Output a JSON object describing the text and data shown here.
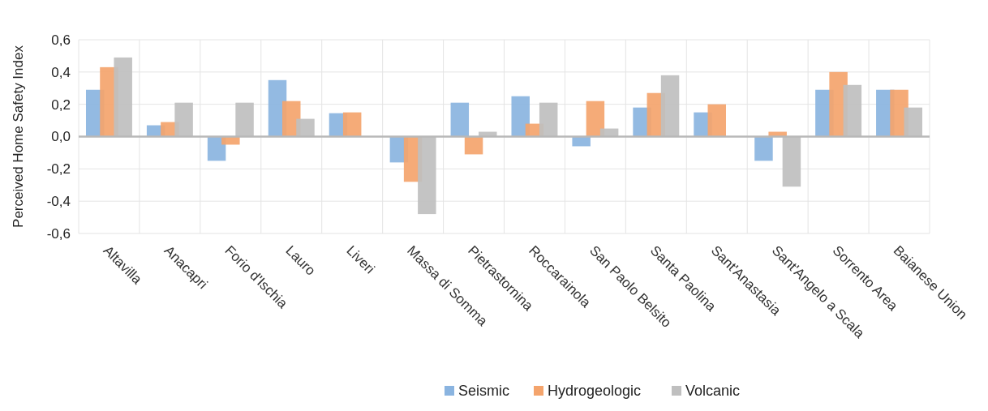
{
  "chart_data": {
    "type": "bar",
    "ylabel": "Perceived Home Safety Index",
    "categories": [
      "Altavilla",
      "Anacapri",
      "Forio d'Ischia",
      "Lauro",
      "Liveri",
      "Massa di Somma",
      "Pietrastornina",
      "Roccarainola",
      "San Paolo Belsito",
      "Santa Paolina",
      "Sant'Anastasia",
      "Sant'Angelo a Scala",
      "Sorrento Area",
      "Baianese Union"
    ],
    "series": [
      {
        "name": "Seismic",
        "color": "#8ab4e0",
        "values": [
          0.29,
          0.07,
          -0.15,
          0.35,
          0.145,
          -0.16,
          0.21,
          0.25,
          -0.06,
          0.18,
          0.15,
          -0.15,
          0.29,
          0.29
        ]
      },
      {
        "name": "Hydrogeologic",
        "color": "#f4a46c",
        "values": [
          0.43,
          0.09,
          -0.05,
          0.22,
          0.15,
          -0.28,
          -0.11,
          0.08,
          0.22,
          0.27,
          0.2,
          0.03,
          0.4,
          0.29
        ]
      },
      {
        "name": "Volcanic",
        "color": "#bfbfbf",
        "values": [
          0.49,
          0.21,
          0.21,
          0.11,
          0,
          -0.48,
          0.03,
          0.21,
          0.05,
          0.38,
          null,
          -0.31,
          0.32,
          0.18
        ]
      }
    ],
    "ylim": [
      -0.6,
      0.6
    ],
    "yticks": [
      {
        "value": -0.6,
        "label": "-0,6"
      },
      {
        "value": -0.4,
        "label": "-0,4"
      },
      {
        "value": -0.2,
        "label": "-0,2"
      },
      {
        "value": 0,
        "label": "0,0"
      },
      {
        "value": 0.2,
        "label": "0,2"
      },
      {
        "value": 0.4,
        "label": "0,4"
      },
      {
        "value": 0.6,
        "label": "0,6"
      }
    ],
    "grid": true,
    "legend": "bottom"
  }
}
